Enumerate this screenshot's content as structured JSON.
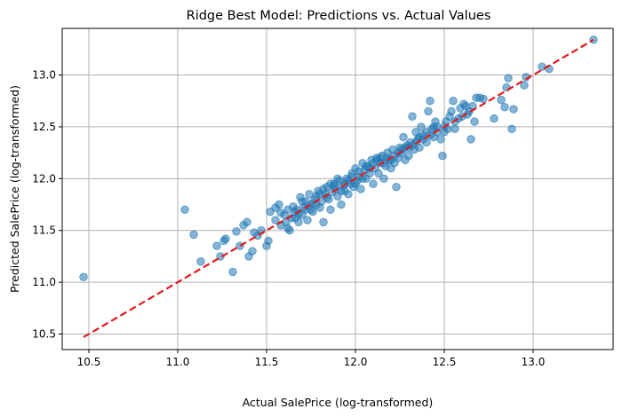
{
  "chart_data": {
    "type": "scatter",
    "title": "Ridge Best Model: Predictions vs. Actual Values",
    "xlabel": "Actual SalePrice (log-transformed)",
    "ylabel": "Predicted SalePrice (log-transformed)",
    "xlim": [
      10.35,
      13.45
    ],
    "ylim": [
      10.35,
      13.45
    ],
    "x_ticks": [
      10.5,
      11.0,
      11.5,
      12.0,
      12.5,
      13.0
    ],
    "x_tick_labels": [
      "10.5",
      "11.0",
      "11.5",
      "12.0",
      "12.5",
      "13.0"
    ],
    "y_ticks": [
      10.5,
      11.0,
      11.5,
      12.0,
      12.5,
      13.0
    ],
    "y_tick_labels": [
      "10.5",
      "11.0",
      "11.5",
      "12.0",
      "12.5",
      "13.0"
    ],
    "grid": true,
    "point_color": "#1f77b4",
    "line_color": "#e31a1c",
    "reference_line": {
      "x": [
        10.47,
        13.34
      ],
      "y": [
        10.47,
        13.34
      ],
      "style": "dashed"
    },
    "points": [
      [
        10.47,
        11.05
      ],
      [
        11.04,
        11.7
      ],
      [
        11.09,
        11.46
      ],
      [
        11.13,
        11.2
      ],
      [
        11.22,
        11.35
      ],
      [
        11.24,
        11.25
      ],
      [
        11.26,
        11.4
      ],
      [
        11.27,
        11.42
      ],
      [
        11.31,
        11.1
      ],
      [
        11.33,
        11.49
      ],
      [
        11.35,
        11.35
      ],
      [
        11.37,
        11.55
      ],
      [
        11.39,
        11.58
      ],
      [
        11.4,
        11.25
      ],
      [
        11.42,
        11.3
      ],
      [
        11.43,
        11.48
      ],
      [
        11.45,
        11.45
      ],
      [
        11.47,
        11.5
      ],
      [
        11.5,
        11.35
      ],
      [
        11.51,
        11.4
      ],
      [
        11.52,
        11.68
      ],
      [
        11.55,
        11.6
      ],
      [
        11.57,
        11.75
      ],
      [
        11.58,
        11.55
      ],
      [
        11.6,
        11.65
      ],
      [
        11.61,
        11.58
      ],
      [
        11.62,
        11.52
      ],
      [
        11.63,
        11.5
      ],
      [
        11.64,
        11.62
      ],
      [
        11.65,
        11.73
      ],
      [
        11.66,
        11.68
      ],
      [
        11.67,
        11.7
      ],
      [
        11.68,
        11.58
      ],
      [
        11.69,
        11.82
      ],
      [
        11.7,
        11.65
      ],
      [
        11.71,
        11.72
      ],
      [
        11.72,
        11.78
      ],
      [
        11.73,
        11.6
      ],
      [
        11.74,
        11.85
      ],
      [
        11.75,
        11.7
      ],
      [
        11.76,
        11.68
      ],
      [
        11.77,
        11.8
      ],
      [
        11.78,
        11.75
      ],
      [
        11.79,
        11.88
      ],
      [
        11.8,
        11.72
      ],
      [
        11.81,
        11.78
      ],
      [
        11.82,
        11.58
      ],
      [
        11.83,
        11.85
      ],
      [
        11.84,
        11.92
      ],
      [
        11.85,
        11.8
      ],
      [
        11.86,
        11.7
      ],
      [
        11.87,
        11.87
      ],
      [
        11.88,
        11.95
      ],
      [
        11.89,
        11.9
      ],
      [
        11.9,
        11.83
      ],
      [
        11.91,
        11.98
      ],
      [
        11.92,
        11.75
      ],
      [
        11.93,
        11.93
      ],
      [
        11.94,
        11.88
      ],
      [
        11.95,
        12.0
      ],
      [
        11.96,
        11.85
      ],
      [
        11.97,
        11.95
      ],
      [
        11.98,
        12.05
      ],
      [
        11.99,
        11.92
      ],
      [
        12.0,
        12.1
      ],
      [
        12.01,
        11.98
      ],
      [
        12.02,
        12.02
      ],
      [
        12.03,
        11.9
      ],
      [
        12.04,
        12.15
      ],
      [
        12.05,
        12.08
      ],
      [
        12.06,
        12.0
      ],
      [
        12.07,
        12.12
      ],
      [
        12.08,
        12.05
      ],
      [
        12.09,
        12.18
      ],
      [
        12.1,
        11.95
      ],
      [
        12.11,
        12.1
      ],
      [
        12.12,
        12.2
      ],
      [
        12.13,
        12.05
      ],
      [
        12.14,
        12.15
      ],
      [
        12.15,
        12.22
      ],
      [
        12.16,
        12.0
      ],
      [
        12.17,
        12.12
      ],
      [
        12.18,
        12.25
      ],
      [
        12.19,
        12.18
      ],
      [
        12.2,
        12.1
      ],
      [
        12.21,
        12.28
      ],
      [
        12.22,
        12.15
      ],
      [
        12.23,
        11.92
      ],
      [
        12.24,
        12.2
      ],
      [
        12.25,
        12.3
      ],
      [
        12.26,
        12.25
      ],
      [
        12.27,
        12.4
      ],
      [
        12.28,
        12.18
      ],
      [
        12.29,
        12.32
      ],
      [
        12.3,
        12.22
      ],
      [
        12.31,
        12.35
      ],
      [
        12.32,
        12.6
      ],
      [
        12.33,
        12.28
      ],
      [
        12.34,
        12.45
      ],
      [
        12.35,
        12.38
      ],
      [
        12.36,
        12.3
      ],
      [
        12.37,
        12.5
      ],
      [
        12.38,
        12.42
      ],
      [
        12.4,
        12.35
      ],
      [
        12.41,
        12.65
      ],
      [
        12.42,
        12.75
      ],
      [
        12.43,
        12.48
      ],
      [
        12.44,
        12.4
      ],
      [
        12.45,
        12.55
      ],
      [
        12.46,
        12.5
      ],
      [
        12.48,
        12.38
      ],
      [
        12.49,
        12.22
      ],
      [
        12.5,
        12.45
      ],
      [
        12.51,
        12.55
      ],
      [
        12.53,
        12.6
      ],
      [
        12.54,
        12.65
      ],
      [
        12.55,
        12.75
      ],
      [
        12.56,
        12.48
      ],
      [
        12.58,
        12.58
      ],
      [
        12.59,
        12.68
      ],
      [
        12.61,
        12.72
      ],
      [
        12.62,
        12.7
      ],
      [
        12.63,
        12.62
      ],
      [
        12.65,
        12.38
      ],
      [
        12.67,
        12.55
      ],
      [
        12.68,
        12.78
      ],
      [
        12.7,
        12.78
      ],
      [
        12.72,
        12.77
      ],
      [
        12.78,
        12.58
      ],
      [
        12.82,
        12.76
      ],
      [
        12.84,
        12.69
      ],
      [
        12.85,
        12.88
      ],
      [
        12.86,
        12.97
      ],
      [
        12.88,
        12.48
      ],
      [
        12.89,
        12.67
      ],
      [
        12.95,
        12.9
      ],
      [
        12.96,
        12.98
      ],
      [
        13.05,
        13.08
      ],
      [
        13.09,
        13.06
      ],
      [
        13.34,
        13.34
      ],
      [
        11.55,
        11.72
      ],
      [
        11.58,
        11.67
      ],
      [
        11.62,
        11.7
      ],
      [
        11.66,
        11.62
      ],
      [
        11.7,
        11.78
      ],
      [
        11.74,
        11.74
      ],
      [
        11.78,
        11.83
      ],
      [
        11.82,
        11.9
      ],
      [
        11.86,
        11.95
      ],
      [
        11.9,
        12.0
      ],
      [
        11.94,
        11.95
      ],
      [
        11.98,
        12.02
      ],
      [
        12.02,
        12.07
      ],
      [
        12.06,
        12.12
      ],
      [
        12.1,
        12.15
      ],
      [
        12.14,
        12.2
      ],
      [
        12.18,
        12.2
      ],
      [
        12.22,
        12.22
      ],
      [
        12.26,
        12.28
      ],
      [
        12.3,
        12.3
      ],
      [
        12.34,
        12.35
      ],
      [
        12.38,
        12.38
      ],
      [
        12.42,
        12.42
      ],
      [
        12.46,
        12.45
      ],
      [
        12.5,
        12.5
      ],
      [
        11.88,
        11.93
      ],
      [
        11.92,
        11.88
      ],
      [
        11.96,
        11.98
      ],
      [
        12.0,
        11.95
      ],
      [
        12.04,
        12.0
      ],
      [
        12.08,
        12.1
      ],
      [
        12.12,
        12.18
      ],
      [
        12.16,
        12.15
      ],
      [
        12.2,
        12.18
      ],
      [
        12.24,
        12.25
      ],
      [
        11.8,
        11.85
      ],
      [
        11.84,
        11.82
      ],
      [
        11.76,
        11.76
      ],
      [
        11.72,
        11.7
      ],
      [
        11.68,
        11.66
      ],
      [
        12.28,
        12.3
      ],
      [
        12.32,
        12.32
      ],
      [
        12.36,
        12.4
      ],
      [
        12.4,
        12.45
      ],
      [
        12.44,
        12.5
      ],
      [
        12.52,
        12.48
      ],
      [
        12.56,
        12.55
      ],
      [
        12.6,
        12.6
      ],
      [
        12.64,
        12.65
      ],
      [
        12.66,
        12.7
      ]
    ]
  }
}
